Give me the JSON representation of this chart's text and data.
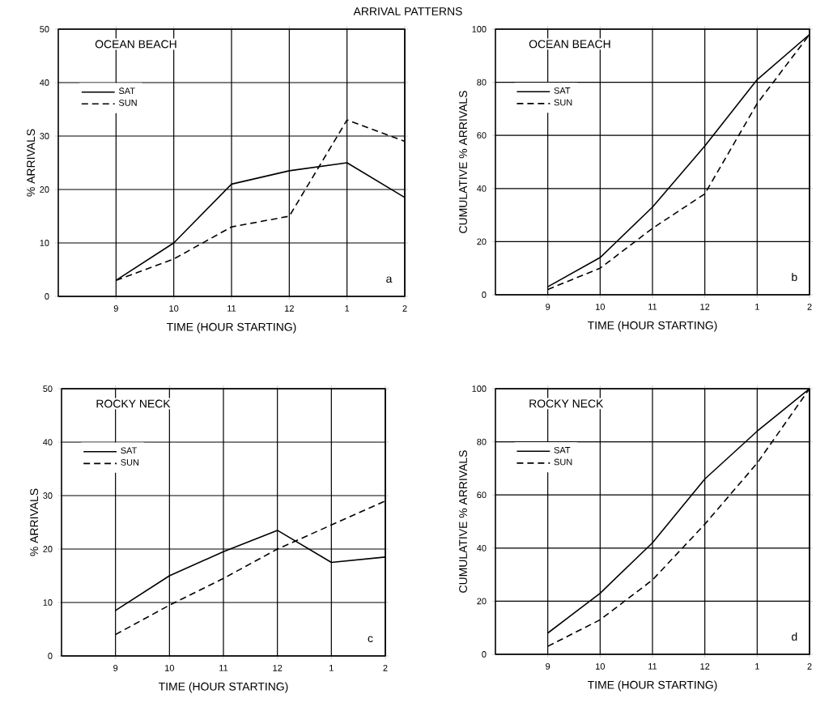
{
  "chart_data": [
    {
      "type": "line",
      "title": "ARRIVAL PATTERNS",
      "subtitle": "OCEAN BEACH",
      "xlabel": "TIME (HOUR STARTING)",
      "ylabel": "% ARRIVALS",
      "categories": [
        "9",
        "10",
        "11",
        "12",
        "1",
        "2"
      ],
      "ylim": [
        0,
        50
      ],
      "yticks": [
        0,
        10,
        20,
        30,
        40,
        50
      ],
      "grid": true,
      "legend": "top left",
      "annotations": [
        "a"
      ],
      "series": [
        {
          "name": "SAT",
          "color": "#000000",
          "line_style": "solid",
          "values": [
            3,
            10,
            21,
            23.5,
            25,
            18.5
          ]
        },
        {
          "name": "SUN",
          "color": "#000000",
          "line_style": "dashed",
          "values": [
            3,
            7,
            13,
            15,
            33,
            29
          ]
        }
      ]
    },
    {
      "type": "line",
      "subtitle": "OCEAN BEACH",
      "xlabel": "TIME (HOUR STARTING)",
      "ylabel": "CUMULATIVE % ARRIVALS",
      "categories": [
        "9",
        "10",
        "11",
        "12",
        "1",
        "2"
      ],
      "ylim": [
        0,
        100
      ],
      "yticks": [
        0,
        20,
        40,
        60,
        80,
        100
      ],
      "grid": true,
      "legend": "top left",
      "annotations": [
        "b"
      ],
      "series": [
        {
          "name": "SAT",
          "color": "#000000",
          "line_style": "solid",
          "values": [
            3,
            14,
            33,
            56,
            81,
            98
          ]
        },
        {
          "name": "SUN",
          "color": "#000000",
          "line_style": "dashed",
          "values": [
            2,
            10,
            25,
            38,
            72,
            98
          ]
        }
      ]
    },
    {
      "type": "line",
      "subtitle": "ROCKY NECK",
      "xlabel": "TIME (HOUR STARTING)",
      "ylabel": "% ARRIVALS",
      "categories": [
        "9",
        "10",
        "11",
        "12",
        "1",
        "2"
      ],
      "ylim": [
        0,
        50
      ],
      "yticks": [
        0,
        10,
        20,
        30,
        40,
        50
      ],
      "grid": true,
      "legend": "top left",
      "annotations": [
        "c"
      ],
      "series": [
        {
          "name": "SAT",
          "color": "#000000",
          "line_style": "solid",
          "values": [
            8.5,
            15,
            19.5,
            23.5,
            17.5,
            18.5
          ]
        },
        {
          "name": "SUN",
          "color": "#000000",
          "line_style": "dashed",
          "values": [
            4,
            9.5,
            14.5,
            20,
            24.5,
            29
          ]
        }
      ]
    },
    {
      "type": "line",
      "subtitle": "ROCKY NECK",
      "xlabel": "TIME (HOUR STARTING)",
      "ylabel": "CUMULATIVE % ARRIVALS",
      "categories": [
        "9",
        "10",
        "11",
        "12",
        "1",
        "2"
      ],
      "ylim": [
        0,
        100
      ],
      "yticks": [
        0,
        20,
        40,
        60,
        80,
        100
      ],
      "grid": true,
      "legend": "top left",
      "annotations": [
        "d"
      ],
      "series": [
        {
          "name": "SAT",
          "color": "#000000",
          "line_style": "solid",
          "values": [
            8,
            23,
            42,
            66,
            84,
            100
          ]
        },
        {
          "name": "SUN",
          "color": "#000000",
          "line_style": "dashed",
          "values": [
            3,
            13,
            28,
            49,
            72,
            100
          ]
        }
      ]
    }
  ]
}
